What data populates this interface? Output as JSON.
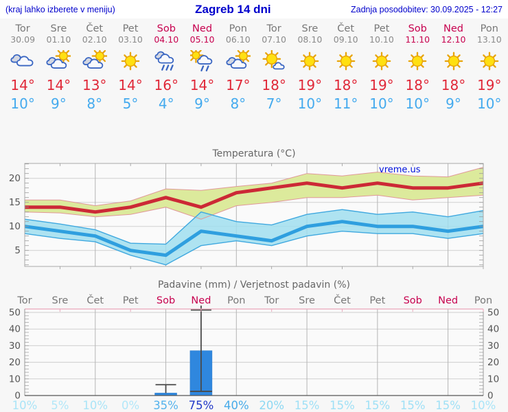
{
  "header": {
    "left": "(kraj lahko izberete v meniju)",
    "title": "Zagreb 14 dni",
    "updated": "Zadnja posodobitev: 30.09.2025 - 12:27"
  },
  "watermark": "vreme.us",
  "forecast": {
    "days": [
      {
        "name": "Tor",
        "date": "30.09",
        "weekend": false,
        "icon": "cloudy",
        "tmax": "14°",
        "tmin": "10°"
      },
      {
        "name": "Sre",
        "date": "01.10",
        "weekend": false,
        "icon": "partly",
        "tmax": "14°",
        "tmin": "9°"
      },
      {
        "name": "Čet",
        "date": "02.10",
        "weekend": false,
        "icon": "partly",
        "tmax": "13°",
        "tmin": "8°"
      },
      {
        "name": "Pet",
        "date": "03.10",
        "weekend": false,
        "icon": "sunny",
        "tmax": "14°",
        "tmin": "5°"
      },
      {
        "name": "Sob",
        "date": "04.10",
        "weekend": true,
        "icon": "rain",
        "tmax": "16°",
        "tmin": "4°"
      },
      {
        "name": "Ned",
        "date": "05.10",
        "weekend": true,
        "icon": "sun-rain",
        "tmax": "14°",
        "tmin": "9°"
      },
      {
        "name": "Pon",
        "date": "06.10",
        "weekend": false,
        "icon": "partly",
        "tmax": "17°",
        "tmin": "8°"
      },
      {
        "name": "Tor",
        "date": "07.10",
        "weekend": false,
        "icon": "mostly-sunny",
        "tmax": "18°",
        "tmin": "7°"
      },
      {
        "name": "Sre",
        "date": "08.10",
        "weekend": false,
        "icon": "sunny",
        "tmax": "19°",
        "tmin": "10°"
      },
      {
        "name": "Čet",
        "date": "09.10",
        "weekend": false,
        "icon": "sunny",
        "tmax": "18°",
        "tmin": "11°"
      },
      {
        "name": "Pet",
        "date": "10.10",
        "weekend": false,
        "icon": "sunny",
        "tmax": "19°",
        "tmin": "10°"
      },
      {
        "name": "Sob",
        "date": "11.10",
        "weekend": true,
        "icon": "sunny",
        "tmax": "18°",
        "tmin": "10°"
      },
      {
        "name": "Ned",
        "date": "12.10",
        "weekend": true,
        "icon": "sunny",
        "tmax": "18°",
        "tmin": "9°"
      },
      {
        "name": "Pon",
        "date": "13.10",
        "weekend": false,
        "icon": "sunny",
        "tmax": "19°",
        "tmin": "10°"
      }
    ]
  },
  "chart_data": [
    {
      "type": "line",
      "title": "Temperatura (°C)",
      "categories": [
        "Tor",
        "Sre",
        "Čet",
        "Pet",
        "Sob",
        "Ned",
        "Pon",
        "Tor",
        "Sre",
        "Čet",
        "Pet",
        "Sob",
        "Ned",
        "Pon"
      ],
      "yticks": [
        5,
        10,
        15,
        20
      ],
      "ylim": [
        1.7,
        23.1
      ],
      "grid": true,
      "series": [
        {
          "name": "max-temp",
          "values": [
            14,
            14,
            13,
            14,
            16,
            14,
            17,
            18,
            19,
            18,
            19,
            18,
            18,
            19
          ]
        },
        {
          "name": "max-temp-upper",
          "values": [
            15.5,
            15.5,
            14.3,
            15.3,
            17.8,
            17.5,
            18.3,
            19,
            21,
            20.5,
            21.3,
            20.5,
            20.3,
            22.3
          ]
        },
        {
          "name": "max-temp-lower",
          "values": [
            13,
            12.8,
            12,
            12.5,
            14,
            11.5,
            14.3,
            15,
            16,
            16,
            16.5,
            15.5,
            16,
            16.5
          ]
        },
        {
          "name": "min-temp",
          "values": [
            10,
            9,
            8,
            5,
            4,
            9,
            8,
            7,
            10,
            11,
            10,
            10,
            9,
            10
          ]
        },
        {
          "name": "min-temp-upper",
          "values": [
            11.5,
            10.5,
            9.3,
            6.5,
            6.3,
            13,
            11,
            10.3,
            12.5,
            13.5,
            12.5,
            13,
            12,
            13.3
          ]
        },
        {
          "name": "min-temp-lower",
          "values": [
            8.5,
            7.5,
            6.8,
            4,
            2,
            6,
            7,
            6,
            8,
            9,
            8.5,
            8.5,
            7.5,
            8.5
          ]
        }
      ]
    },
    {
      "type": "bar",
      "title": "Padavine (mm) / Verjetnost padavin (%)",
      "categories": [
        "Tor",
        "Sre",
        "Čet",
        "Pet",
        "Sob",
        "Ned",
        "Pon",
        "Tor",
        "Sre",
        "Čet",
        "Pet",
        "Sob",
        "Ned",
        "Pon"
      ],
      "weekend_index": [
        4,
        5,
        11,
        12
      ],
      "yticks": [
        0,
        10,
        20,
        30,
        40,
        50
      ],
      "ylim": [
        0,
        52
      ],
      "values_mm": [
        0,
        0,
        0,
        0,
        1.5,
        27,
        0,
        0,
        0,
        0,
        0,
        0,
        0,
        0
      ],
      "whiskers": [
        {
          "day_index": 4,
          "low": null,
          "high": 6.5
        },
        {
          "day_index": 5,
          "low": 2.5,
          "high": 52
        }
      ],
      "probabilities": [
        "10%",
        "5%",
        "10%",
        "0%",
        "35%",
        "75%",
        "40%",
        "20%",
        "15%",
        "15%",
        "15%",
        "15%",
        "15%",
        "10%"
      ]
    }
  ],
  "colors": {
    "header_blue": "#0000cc",
    "weekend": "#c7004e",
    "day_gray": "#787878",
    "tmax_red": "#e02838",
    "tmin_blue": "#44aaee",
    "line_red": "#cc2936",
    "band_green": "#dcea9c",
    "band_green_edge": "#e09898",
    "line_blue": "#2f9fdf",
    "band_blue": "#9edeef",
    "band_blue_edge": "#3fa8df",
    "bar_blue": "#2f87de",
    "axis_pink": "#eaa6ba",
    "watermark_blue": "#0011dd"
  },
  "percent_colors": {
    "0%": "#b2e7f8",
    "5%": "#b2e7f8",
    "10%": "#aae4f7",
    "15%": "#9fe0f6",
    "20%": "#8cd8f2",
    "35%": "#54b2ec",
    "40%": "#47abe9",
    "75%": "#2138c8"
  }
}
